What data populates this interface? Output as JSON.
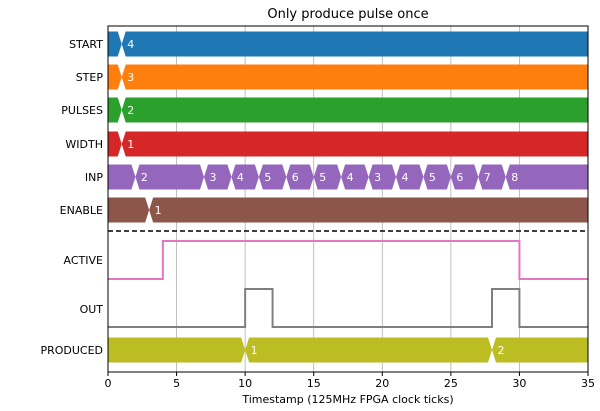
{
  "chart_data": {
    "type": "timing-diagram",
    "title": "Only produce pulse once",
    "xlabel": "Timestamp (125MHz FPGA clock ticks)",
    "xlim": [
      0,
      35
    ],
    "xticks": [
      0,
      5,
      10,
      15,
      20,
      25,
      30,
      35
    ],
    "grid": "vertical",
    "bus_signals": [
      {
        "name": "START",
        "color": "#1f77b4",
        "changes": [
          {
            "t": 1,
            "label": "4"
          }
        ]
      },
      {
        "name": "STEP",
        "color": "#ff7f0e",
        "changes": [
          {
            "t": 1,
            "label": "3"
          }
        ]
      },
      {
        "name": "PULSES",
        "color": "#2ca02c",
        "changes": [
          {
            "t": 1,
            "label": "2"
          }
        ]
      },
      {
        "name": "WIDTH",
        "color": "#d62728",
        "changes": [
          {
            "t": 1,
            "label": "1"
          }
        ]
      },
      {
        "name": "INP",
        "color": "#9467bd",
        "changes": [
          {
            "t": 2,
            "label": "2"
          },
          {
            "t": 7,
            "label": "3"
          },
          {
            "t": 9,
            "label": "4"
          },
          {
            "t": 11,
            "label": "5"
          },
          {
            "t": 13,
            "label": "6"
          },
          {
            "t": 15,
            "label": "5"
          },
          {
            "t": 17,
            "label": "4"
          },
          {
            "t": 19,
            "label": "3"
          },
          {
            "t": 21,
            "label": "4"
          },
          {
            "t": 23,
            "label": "5"
          },
          {
            "t": 25,
            "label": "6"
          },
          {
            "t": 27,
            "label": "7"
          },
          {
            "t": 29,
            "label": "8"
          }
        ]
      },
      {
        "name": "ENABLE",
        "color": "#8c564b",
        "changes": [
          {
            "t": 3,
            "label": "1"
          }
        ]
      }
    ],
    "bit_signals": [
      {
        "name": "ACTIVE",
        "color": "#e377c2",
        "transitions": [
          {
            "t": 0,
            "v": 0
          },
          {
            "t": 4,
            "v": 1
          },
          {
            "t": 30,
            "v": 0
          }
        ]
      },
      {
        "name": "OUT",
        "color": "#7f7f7f",
        "transitions": [
          {
            "t": 0,
            "v": 0
          },
          {
            "t": 10,
            "v": 1
          },
          {
            "t": 12,
            "v": 0
          },
          {
            "t": 28,
            "v": 1
          },
          {
            "t": 30,
            "v": 0
          }
        ]
      }
    ],
    "counter_signals": [
      {
        "name": "PRODUCED",
        "color": "#bcbd22",
        "changes": [
          {
            "t": 10,
            "label": "1"
          },
          {
            "t": 28,
            "label": "2"
          }
        ]
      }
    ]
  }
}
